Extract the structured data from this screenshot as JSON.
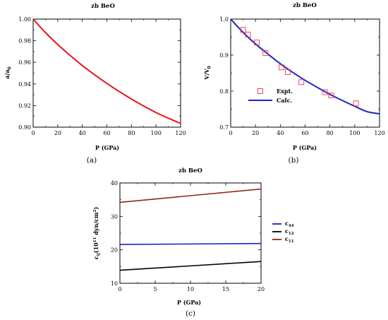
{
  "chart_data": [
    {
      "id": "a",
      "type": "line",
      "title": "zb BeO",
      "xlabel": "P (GPa)",
      "ylabel_main": "a/a",
      "ylabel_sub": "0",
      "caption": "(a)",
      "xlim": [
        0,
        120
      ],
      "ylim": [
        0.9,
        1.0
      ],
      "xticks": [
        0,
        20,
        40,
        60,
        80,
        100,
        120
      ],
      "xtick_labels": [
        "0",
        "20",
        "40",
        "60",
        "80",
        "100",
        "120"
      ],
      "yticks": [
        0.9,
        0.92,
        0.94,
        0.96,
        0.98,
        1.0
      ],
      "ytick_labels": [
        "0.90",
        "0.92",
        "0.94",
        "0.96",
        "0.98",
        "1.00"
      ],
      "color": "#e8141e",
      "series": [
        {
          "x": [
            0,
            10,
            20,
            30,
            40,
            50,
            60,
            70,
            80,
            90,
            100,
            110,
            120
          ],
          "y": [
            1.0,
            0.9875,
            0.9765,
            0.9665,
            0.957,
            0.9485,
            0.9405,
            0.933,
            0.926,
            0.9195,
            0.9135,
            0.9083,
            0.9035
          ]
        }
      ]
    },
    {
      "id": "b",
      "type": "scatter+line",
      "title": "zb BeO",
      "xlabel": "P (GPa)",
      "ylabel_main": "V/V",
      "ylabel_sub": "0",
      "caption": "(b)",
      "xlim": [
        0,
        120
      ],
      "ylim": [
        0.7,
        1.0
      ],
      "xticks": [
        0,
        20,
        40,
        60,
        80,
        100,
        120
      ],
      "xtick_labels": [
        "0",
        "20",
        "40",
        "60",
        "80",
        "100",
        "120"
      ],
      "yticks": [
        0.7,
        0.8,
        0.9,
        1.0
      ],
      "ytick_labels": [
        "0.7",
        "0.8",
        "0.9",
        "1.0"
      ],
      "legend_position": "center-left",
      "series": [
        {
          "name": "Expt.",
          "kind": "markers",
          "color": "#ee3a4a",
          "x": [
            10,
            14,
            21,
            28,
            41,
            46,
            57,
            76,
            81,
            101
          ],
          "y": [
            0.97,
            0.957,
            0.935,
            0.906,
            0.866,
            0.853,
            0.825,
            0.797,
            0.788,
            0.766
          ]
        },
        {
          "name": "Calc.",
          "kind": "line",
          "color": "#1c25c9",
          "x": [
            0,
            10,
            20,
            30,
            40,
            50,
            60,
            70,
            80,
            90,
            100,
            110,
            120
          ],
          "y": [
            1.0,
            0.963,
            0.931,
            0.903,
            0.876,
            0.852,
            0.83,
            0.81,
            0.791,
            0.774,
            0.758,
            0.743,
            0.737
          ]
        }
      ]
    },
    {
      "id": "c",
      "type": "line",
      "title": "zb BeO",
      "xlabel": "P (GPa)",
      "ylabel_main": "c",
      "ylabel_sub": "ij",
      "ylabel_rest": "(10",
      "ylabel_sup": "11",
      "ylabel_tail": " dyn/cm",
      "ylabel_sup2": "2",
      "ylabel_end": ")",
      "caption": "(c)",
      "xlim": [
        0,
        20
      ],
      "ylim": [
        10,
        40
      ],
      "xticks": [
        0,
        5,
        10,
        15,
        20
      ],
      "xtick_labels": [
        "0",
        "5",
        "10",
        "15",
        "20"
      ],
      "yticks": [
        10,
        20,
        30,
        40
      ],
      "ytick_labels": [
        "10",
        "20",
        "30",
        "40"
      ],
      "legend_position": "right",
      "series": [
        {
          "name_main": "c",
          "name_sub": "44",
          "color": "#1a22c4",
          "x": [
            0,
            20
          ],
          "y": [
            21.6,
            21.9
          ]
        },
        {
          "name_main": "c",
          "name_sub": "12",
          "color": "#000000",
          "x": [
            0,
            20
          ],
          "y": [
            13.9,
            16.5
          ]
        },
        {
          "name_main": "c",
          "name_sub": "11",
          "color": "#8b2a10",
          "x": [
            0,
            20
          ],
          "y": [
            34.2,
            38.2
          ]
        }
      ]
    }
  ]
}
